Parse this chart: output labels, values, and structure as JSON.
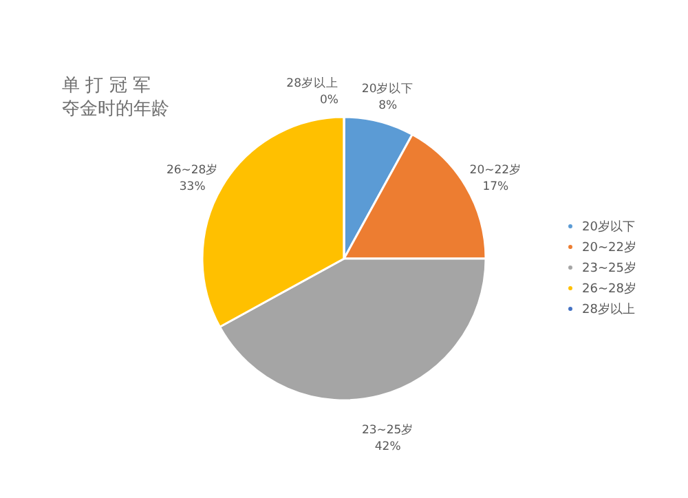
{
  "chart_data": {
    "type": "pie",
    "title": "单 打 冠 军",
    "subtitle": "夺金时的年龄",
    "categories": [
      "20岁以下",
      "20~22岁",
      "23~25岁",
      "26~28岁",
      "28岁以上"
    ],
    "values": [
      8,
      17,
      42,
      33,
      0
    ],
    "value_labels": [
      "8%",
      "17%",
      "42%",
      "33%",
      "0%"
    ],
    "colors": [
      "#5b9bd5",
      "#ed7d31",
      "#a5a5a5",
      "#ffc000",
      "#4472c4"
    ],
    "legend": "right"
  }
}
